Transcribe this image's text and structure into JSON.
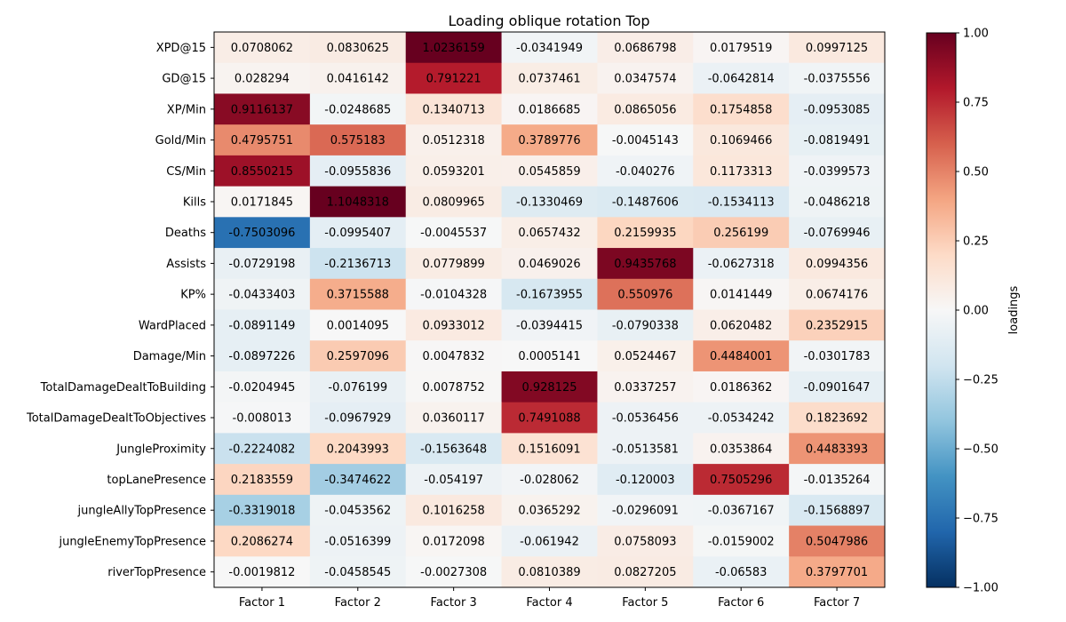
{
  "chart_data": {
    "type": "heatmap",
    "title": "Loading oblique rotation Top",
    "x_labels": [
      "Factor 1",
      "Factor 2",
      "Factor 3",
      "Factor 4",
      "Factor 5",
      "Factor 6",
      "Factor 7"
    ],
    "y_labels": [
      "XPD@15",
      "GD@15",
      "XP/Min",
      "Gold/Min",
      "CS/Min",
      "Kills",
      "Deaths",
      "Assists",
      "KP%",
      "WardPlaced",
      "Damage/Min",
      "TotalDamageDealtToBuilding",
      "TotalDamageDealtToObjectives",
      "JungleProximity",
      "topLanePresence",
      "jungleAllyTopPresence",
      "jungleEnemyTopPresence",
      "riverTopPresence"
    ],
    "values": [
      [
        0.0708062,
        0.0830625,
        1.0236159,
        -0.0341949,
        0.0686798,
        0.0179519,
        0.0997125
      ],
      [
        0.028294,
        0.0416142,
        0.791221,
        0.0737461,
        0.0347574,
        -0.0642814,
        -0.0375556
      ],
      [
        0.9116137,
        -0.0248685,
        0.1340713,
        0.0186685,
        0.0865056,
        0.1754858,
        -0.0953085
      ],
      [
        0.4795751,
        0.575183,
        0.0512318,
        0.3789776,
        -0.0045143,
        0.1069466,
        -0.0819491
      ],
      [
        0.8550215,
        -0.0955836,
        0.0593201,
        0.0545859,
        -0.040276,
        0.1173313,
        -0.0399573
      ],
      [
        0.0171845,
        1.1048318,
        0.0809965,
        -0.1330469,
        -0.1487606,
        -0.1534113,
        -0.0486218
      ],
      [
        -0.7503096,
        -0.0995407,
        -0.0045537,
        0.0657432,
        0.2159935,
        0.256199,
        -0.0769946
      ],
      [
        -0.0729198,
        -0.2136713,
        0.0779899,
        0.0469026,
        0.9435768,
        -0.0627318,
        0.0994356
      ],
      [
        -0.0433403,
        0.3715588,
        -0.0104328,
        -0.1673955,
        0.550976,
        0.0141449,
        0.0674176
      ],
      [
        -0.0891149,
        0.0014095,
        0.0933012,
        -0.0394415,
        -0.0790338,
        0.0620482,
        0.2352915
      ],
      [
        -0.0897226,
        0.2597096,
        0.0047832,
        0.0005141,
        0.0524467,
        0.4484001,
        -0.0301783
      ],
      [
        -0.0204945,
        -0.076199,
        0.0078752,
        0.928125,
        0.0337257,
        0.0186362,
        -0.0901647
      ],
      [
        -0.008013,
        -0.0967929,
        0.0360117,
        0.7491088,
        -0.0536456,
        -0.0534242,
        0.1823692
      ],
      [
        -0.2224082,
        0.2043993,
        -0.1563648,
        0.1516091,
        -0.0513581,
        0.0353864,
        0.4483393
      ],
      [
        0.2183559,
        -0.3474622,
        -0.054197,
        -0.028062,
        -0.120003,
        0.7505296,
        -0.0135264
      ],
      [
        -0.3319018,
        -0.0453562,
        0.1016258,
        0.0365292,
        -0.0296091,
        -0.0367167,
        -0.1568897
      ],
      [
        0.2086274,
        -0.0516399,
        0.0172098,
        -0.061942,
        0.0758093,
        -0.0159002,
        0.5047986
      ],
      [
        -0.0019812,
        -0.0458545,
        -0.0027308,
        0.0810389,
        0.0827205,
        -0.06583,
        0.3797701
      ]
    ],
    "cell_text": [
      [
        "0.0708062",
        "0.0830625",
        "1.0236159",
        "-0.0341949",
        "0.0686798",
        "0.0179519",
        "0.0997125"
      ],
      [
        "0.028294",
        "0.0416142",
        "0.791221",
        "0.0737461",
        "0.0347574",
        "-0.0642814",
        "-0.0375556"
      ],
      [
        "0.9116137",
        "-0.0248685",
        "0.1340713",
        "0.0186685",
        "0.0865056",
        "0.1754858",
        "-0.0953085"
      ],
      [
        "0.4795751",
        "0.575183",
        "0.0512318",
        "0.3789776",
        "-0.0045143",
        "0.1069466",
        "-0.0819491"
      ],
      [
        "0.8550215",
        "-0.0955836",
        "0.0593201",
        "0.0545859",
        "-0.040276",
        "0.1173313",
        "-0.0399573"
      ],
      [
        "0.0171845",
        "1.1048318",
        "0.0809965",
        "-0.1330469",
        "-0.1487606",
        "-0.1534113",
        "-0.0486218"
      ],
      [
        "-0.7503096",
        "-0.0995407",
        "-0.0045537",
        "0.0657432",
        "0.2159935",
        "0.256199",
        "-0.0769946"
      ],
      [
        "-0.0729198",
        "-0.2136713",
        "0.0779899",
        "0.0469026",
        "0.9435768",
        "-0.0627318",
        "0.0994356"
      ],
      [
        "-0.0433403",
        "0.3715588",
        "-0.0104328",
        "-0.1673955",
        "0.550976",
        "0.0141449",
        "0.0674176"
      ],
      [
        "-0.0891149",
        "0.0014095",
        "0.0933012",
        "-0.0394415",
        "-0.0790338",
        "0.0620482",
        "0.2352915"
      ],
      [
        "-0.0897226",
        "0.2597096",
        "0.0047832",
        "0.0005141",
        "0.0524467",
        "0.4484001",
        "-0.0301783"
      ],
      [
        "-0.0204945",
        "-0.076199",
        "0.0078752",
        "0.928125",
        "0.0337257",
        "0.0186362",
        "-0.0901647"
      ],
      [
        "-0.008013",
        "-0.0967929",
        "0.0360117",
        "0.7491088",
        "-0.0536456",
        "-0.0534242",
        "0.1823692"
      ],
      [
        "-0.2224082",
        "0.2043993",
        "-0.1563648",
        "0.1516091",
        "-0.0513581",
        "0.0353864",
        "0.4483393"
      ],
      [
        "0.2183559",
        "-0.3474622",
        "-0.054197",
        "-0.028062",
        "-0.120003",
        "0.7505296",
        "-0.0135264"
      ],
      [
        "-0.3319018",
        "-0.0453562",
        "0.1016258",
        "0.0365292",
        "-0.0296091",
        "-0.0367167",
        "-0.1568897"
      ],
      [
        "0.2086274",
        "-0.0516399",
        "0.0172098",
        "-0.061942",
        "0.0758093",
        "-0.0159002",
        "0.5047986"
      ],
      [
        "-0.0019812",
        "-0.0458545",
        "-0.0027308",
        "0.0810389",
        "0.0827205",
        "-0.06583",
        "0.3797701"
      ]
    ],
    "colorbar": {
      "label": "loadings",
      "range": [
        -1.0,
        1.0
      ],
      "ticks": [
        -1.0,
        -0.75,
        -0.5,
        -0.25,
        0.0,
        0.25,
        0.5,
        0.75,
        1.0
      ],
      "tick_labels": [
        "−1.00",
        "−0.75",
        "−0.50",
        "−0.25",
        "0.00",
        "0.25",
        "0.50",
        "0.75",
        "1.00"
      ],
      "colormap": "RdBu_r",
      "colormap_stops": [
        "#053061",
        "#2166ac",
        "#4393c3",
        "#92c5de",
        "#d1e5f0",
        "#f7f7f7",
        "#fddbc7",
        "#f4a582",
        "#d6604d",
        "#b2182b",
        "#67001f"
      ]
    }
  }
}
